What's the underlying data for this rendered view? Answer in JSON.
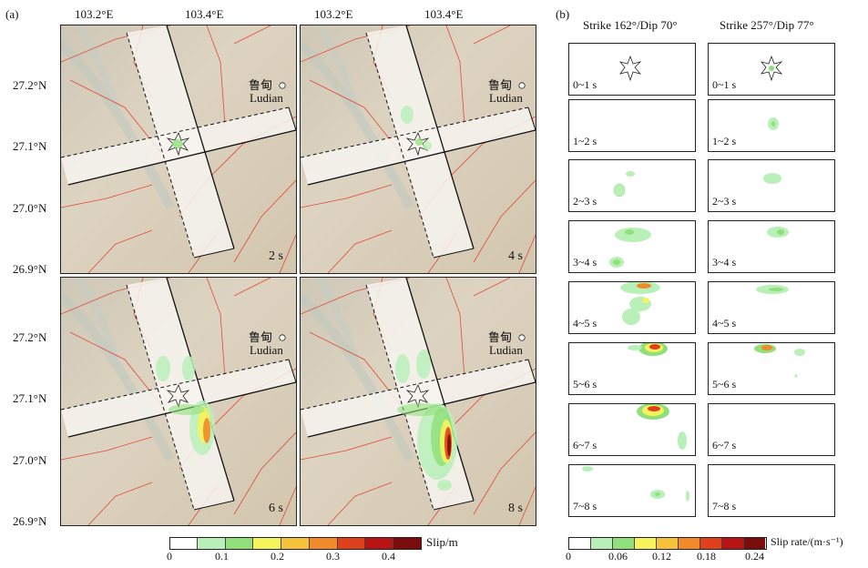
{
  "panel_a_label": "(a)",
  "panel_b_label": "(b)",
  "lon_labels": [
    "103.2°E",
    "103.4°E"
  ],
  "lat_labels": [
    "27.2°N",
    "27.1°N",
    "27.0°N",
    "26.9°N"
  ],
  "city_cn": "鲁甸",
  "city_en": "Ludian",
  "map_times": [
    "2 s",
    "4 s",
    "6 s",
    "8 s"
  ],
  "col_titles": [
    "Strike 162°/Dip 70°",
    "Strike 257°/Dip 77°"
  ],
  "intervals": [
    "0~1 s",
    "1~2 s",
    "2~3 s",
    "3~4 s",
    "4~5 s",
    "5~6 s",
    "6~7 s",
    "7~8 s"
  ],
  "slip_bar": {
    "ticks": [
      "0",
      "0.1",
      "0.2",
      "0.3",
      "0.4"
    ],
    "label": "Slip/m",
    "colors": [
      "#ffffff",
      "#b8f0b8",
      "#8fe07a",
      "#f7f35a",
      "#f5c23a",
      "#f08a2a",
      "#e0401c",
      "#b81414",
      "#7a0c0c"
    ]
  },
  "rate_bar": {
    "ticks": [
      "0",
      "0.06",
      "0.12",
      "0.18",
      "0.24"
    ],
    "label": "Slip rate/(m·s⁻¹)",
    "colors": [
      "#ffffff",
      "#b8f0b8",
      "#8fe07a",
      "#f7f35a",
      "#f5c23a",
      "#f08a2a",
      "#e0401c",
      "#b81414",
      "#7a0c0c"
    ]
  }
}
